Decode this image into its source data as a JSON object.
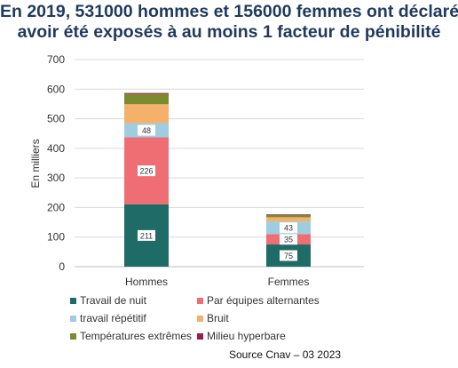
{
  "title_lines": [
    "En 2019, 531000 hommes et 156000 femmes ont déclaré",
    "avoir été exposés à au moins 1 facteur de pénibilité"
  ],
  "source": "Source Cnav – 03 2023",
  "chart_data": {
    "type": "bar",
    "stacked": true,
    "categories": [
      "Hommes",
      "Femmes"
    ],
    "ylabel": "En milliers",
    "ylim": [
      0,
      700
    ],
    "yticks": [
      0,
      100,
      200,
      300,
      400,
      500,
      600,
      700
    ],
    "grid": true,
    "legend_position": "bottom",
    "series": [
      {
        "name": "Travail de nuit",
        "color": "#1e6b68",
        "values": [
          211,
          75
        ],
        "labels": [
          "211",
          "75"
        ]
      },
      {
        "name": "Par équipes alternantes",
        "color": "#ee6e73",
        "values": [
          226,
          35
        ],
        "labels": [
          "226",
          "35"
        ]
      },
      {
        "name": "travail répétitif",
        "color": "#9ecde2",
        "values": [
          48,
          43
        ],
        "labels": [
          "48",
          "43"
        ]
      },
      {
        "name": "Bruit",
        "color": "#f5b06a",
        "values": [
          64,
          14
        ],
        "labels": [
          "",
          ""
        ]
      },
      {
        "name": "Températures extrêmes",
        "color": "#7c8b2f",
        "values": [
          35,
          8
        ],
        "labels": [
          "",
          ""
        ]
      },
      {
        "name": "Milieu hyperbare",
        "color": "#9b1d4a",
        "values": [
          3,
          2
        ],
        "labels": [
          "",
          ""
        ]
      }
    ]
  }
}
